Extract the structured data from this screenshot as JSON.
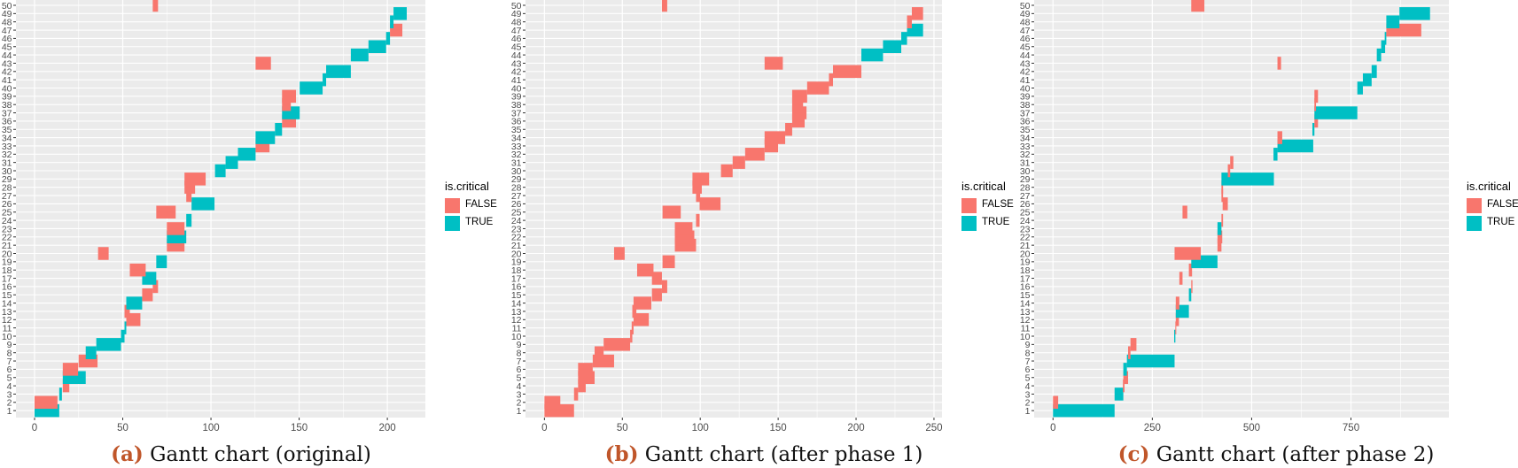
{
  "colors": {
    "false": "#F8766D",
    "true": "#00BFC4",
    "panel_bg": "#EBEBEB",
    "grid": "#FFFFFF",
    "caption_letter": "#C0562A"
  },
  "chart_data": [
    {
      "type": "gantt",
      "caption_letter": "(a)",
      "caption_text": "Gantt chart (original)",
      "xlabel": "",
      "ylabel": "",
      "xticks": [
        0,
        50,
        100,
        150,
        200
      ],
      "xminor": [
        25,
        75,
        125,
        175
      ],
      "xlim": [
        0,
        211
      ],
      "yticks": [
        1,
        2,
        3,
        4,
        5,
        6,
        7,
        8,
        9,
        10,
        11,
        12,
        13,
        14,
        15,
        16,
        17,
        18,
        19,
        20,
        21,
        22,
        23,
        24,
        25,
        26,
        27,
        28,
        29,
        30,
        31,
        32,
        33,
        34,
        35,
        36,
        37,
        38,
        39,
        40,
        41,
        42,
        43,
        44,
        45,
        46,
        47,
        48,
        49,
        50
      ],
      "legend": {
        "title": "is.critical",
        "entries": [
          "FALSE",
          "TRUE"
        ]
      },
      "tasks": [
        [
          1,
          0,
          14,
          true
        ],
        [
          2,
          0,
          13,
          false
        ],
        [
          3,
          14,
          15.5,
          true
        ],
        [
          4,
          16,
          19.7,
          false
        ],
        [
          5,
          16,
          29,
          true
        ],
        [
          6,
          16,
          24.7,
          false
        ],
        [
          7,
          25,
          35.7,
          false
        ],
        [
          8,
          29,
          35,
          true
        ],
        [
          9,
          35,
          49,
          true
        ],
        [
          10,
          49,
          51,
          true
        ],
        [
          11,
          51,
          52,
          true
        ],
        [
          12,
          52,
          60,
          false
        ],
        [
          13,
          51,
          54,
          false
        ],
        [
          14,
          52,
          61,
          true
        ],
        [
          15,
          61,
          67,
          false
        ],
        [
          16,
          67,
          70,
          false
        ],
        [
          17,
          61,
          69,
          true
        ],
        [
          18,
          54,
          63,
          false
        ],
        [
          19,
          69,
          75,
          true
        ],
        [
          20,
          36,
          42,
          false
        ],
        [
          21,
          75,
          85,
          false
        ],
        [
          22,
          75,
          86,
          true
        ],
        [
          23,
          75,
          85,
          false
        ],
        [
          24,
          86,
          89,
          true
        ],
        [
          25,
          69,
          80,
          false
        ],
        [
          26,
          89,
          102,
          true
        ],
        [
          27,
          86,
          89,
          false
        ],
        [
          28,
          85,
          91,
          false
        ],
        [
          29,
          85,
          97,
          false
        ],
        [
          30,
          102.3,
          108.3,
          true
        ],
        [
          31,
          108.3,
          115.3,
          true
        ],
        [
          32,
          115.3,
          125.3,
          true
        ],
        [
          33,
          125.3,
          133.2,
          false
        ],
        [
          34,
          125.3,
          136.3,
          true
        ],
        [
          35,
          136.3,
          140.3,
          true
        ],
        [
          36,
          140.3,
          148.2,
          false
        ],
        [
          37,
          140.3,
          150.3,
          true
        ],
        [
          38,
          140.3,
          145.3,
          false
        ],
        [
          39,
          140.3,
          148.2,
          false
        ],
        [
          40,
          150.3,
          163.3,
          true
        ],
        [
          41,
          163.3,
          165.3,
          true
        ],
        [
          42,
          165.3,
          179.3,
          true
        ],
        [
          43,
          125.3,
          134,
          false
        ],
        [
          44,
          179.3,
          189.3,
          true
        ],
        [
          45,
          189.3,
          199.3,
          true
        ],
        [
          46,
          199.3,
          201.5,
          true
        ],
        [
          47,
          201.5,
          208.5,
          false
        ],
        [
          48,
          201.5,
          203.5,
          true
        ],
        [
          49,
          203.5,
          211,
          true
        ],
        [
          50,
          67,
          70,
          false
        ]
      ]
    },
    {
      "type": "gantt",
      "caption_letter": "(b)",
      "caption_text": "Gantt chart (after phase 1)",
      "xlabel": "",
      "ylabel": "",
      "xticks": [
        0,
        50,
        100,
        150,
        200,
        250
      ],
      "xminor": [
        25,
        75,
        125,
        175,
        225
      ],
      "xlim": [
        0,
        243
      ],
      "yticks": [
        1,
        2,
        3,
        4,
        5,
        6,
        7,
        8,
        9,
        10,
        11,
        12,
        13,
        14,
        15,
        16,
        17,
        18,
        19,
        20,
        21,
        22,
        23,
        24,
        25,
        26,
        27,
        28,
        29,
        30,
        31,
        32,
        33,
        34,
        35,
        36,
        37,
        38,
        39,
        40,
        41,
        42,
        43,
        44,
        45,
        46,
        47,
        48,
        49,
        50
      ],
      "legend": {
        "title": "is.critical",
        "entries": [
          "FALSE",
          "TRUE"
        ]
      },
      "tasks": [
        [
          1,
          0,
          19,
          false
        ],
        [
          2,
          0,
          10.2,
          false
        ],
        [
          3,
          19,
          21.6,
          false
        ],
        [
          4,
          21.6,
          26.5,
          false
        ],
        [
          5,
          21.6,
          32.2,
          false
        ],
        [
          6,
          21.6,
          31,
          false
        ],
        [
          7,
          31,
          44.7,
          false
        ],
        [
          8,
          32.2,
          38,
          false
        ],
        [
          9,
          38,
          55,
          false
        ],
        [
          10,
          55,
          56.4,
          false
        ],
        [
          11,
          56,
          57.2,
          false
        ],
        [
          12,
          57.2,
          67,
          false
        ],
        [
          13,
          56.4,
          59,
          false
        ],
        [
          14,
          57.2,
          68.6,
          false
        ],
        [
          15,
          69,
          75.4,
          false
        ],
        [
          16,
          75.4,
          78.8,
          false
        ],
        [
          17,
          69,
          75.4,
          false
        ],
        [
          18,
          59.5,
          70,
          false
        ],
        [
          19,
          75.8,
          83.7,
          false
        ],
        [
          20,
          44.7,
          51.5,
          false
        ],
        [
          21,
          83.7,
          97.3,
          false
        ],
        [
          22,
          83.7,
          96.2,
          false
        ],
        [
          23,
          83.7,
          95,
          false
        ],
        [
          24,
          97.3,
          99.6,
          false
        ],
        [
          25,
          75.8,
          87.5,
          false
        ],
        [
          26,
          99.6,
          113,
          false
        ],
        [
          27,
          97.3,
          100,
          false
        ],
        [
          28,
          95,
          101,
          false
        ],
        [
          29,
          95,
          105.7,
          false
        ],
        [
          30,
          113.3,
          120.8,
          false
        ],
        [
          31,
          120.8,
          128.8,
          false
        ],
        [
          32,
          128.8,
          141.3,
          false
        ],
        [
          33,
          141.3,
          150,
          false
        ],
        [
          34,
          141.3,
          154.5,
          false
        ],
        [
          35,
          154.5,
          159,
          false
        ],
        [
          36,
          159,
          167,
          false
        ],
        [
          37,
          159,
          168.2,
          false
        ],
        [
          38,
          159,
          166,
          false
        ],
        [
          39,
          159,
          168.6,
          false
        ],
        [
          40,
          168.6,
          182.6,
          false
        ],
        [
          41,
          182.6,
          185.2,
          false
        ],
        [
          42,
          185.2,
          203.4,
          false
        ],
        [
          43,
          141.3,
          153,
          false
        ],
        [
          44,
          203.4,
          217.3,
          true
        ],
        [
          45,
          217.3,
          229,
          true
        ],
        [
          46,
          229,
          232.7,
          true
        ],
        [
          47,
          232.7,
          243,
          true
        ],
        [
          48,
          232.7,
          235.8,
          false
        ],
        [
          49,
          235.8,
          243,
          false
        ],
        [
          50,
          75.4,
          78.8,
          false
        ]
      ]
    },
    {
      "type": "gantt",
      "caption_letter": "(c)",
      "caption_text": "Gantt chart (after phase 2)",
      "xlabel": "",
      "ylabel": "",
      "xticks": [
        0,
        250,
        500,
        750
      ],
      "xminor": [
        125,
        375,
        625,
        875
      ],
      "xlim": [
        0,
        949
      ],
      "yticks": [
        1,
        2,
        3,
        4,
        5,
        6,
        7,
        8,
        9,
        10,
        11,
        12,
        13,
        14,
        15,
        16,
        17,
        18,
        19,
        20,
        21,
        22,
        23,
        24,
        25,
        26,
        27,
        28,
        29,
        30,
        31,
        32,
        33,
        34,
        35,
        36,
        37,
        38,
        39,
        40,
        41,
        42,
        43,
        44,
        45,
        46,
        47,
        48,
        49,
        50
      ],
      "legend": {
        "title": "is.critical",
        "entries": [
          "FALSE",
          "TRUE"
        ]
      },
      "tasks": [
        [
          1,
          0,
          155,
          true
        ],
        [
          2,
          0,
          13,
          false
        ],
        [
          3,
          155,
          177,
          true
        ],
        [
          4,
          176,
          180,
          false
        ],
        [
          5,
          177,
          189,
          false
        ],
        [
          6,
          177,
          186,
          true
        ],
        [
          7,
          186,
          306,
          true
        ],
        [
          8,
          189,
          195,
          false
        ],
        [
          9,
          195,
          210,
          false
        ],
        [
          10,
          305,
          308,
          true
        ],
        [
          11,
          308,
          309.5,
          false
        ],
        [
          12,
          309,
          317,
          false
        ],
        [
          13,
          309,
          342,
          true
        ],
        [
          14,
          309,
          318,
          false
        ],
        [
          15,
          342,
          348,
          true
        ],
        [
          16,
          348,
          351,
          false
        ],
        [
          17,
          318,
          326,
          false
        ],
        [
          18,
          342,
          350,
          false
        ],
        [
          19,
          348,
          414,
          true
        ],
        [
          20,
          306,
          372,
          false
        ],
        [
          21,
          414,
          424,
          false
        ],
        [
          22,
          414,
          426,
          false
        ],
        [
          23,
          414,
          424,
          true
        ],
        [
          24,
          424,
          428,
          false
        ],
        [
          25,
          326,
          338,
          false
        ],
        [
          26,
          427,
          440,
          false
        ],
        [
          27,
          424,
          428,
          false
        ],
        [
          28,
          424,
          428,
          false
        ],
        [
          29,
          424,
          556,
          true
        ],
        [
          30,
          440,
          446,
          false
        ],
        [
          31,
          446,
          454,
          false
        ],
        [
          32,
          555,
          565,
          true
        ],
        [
          33,
          565,
          655,
          true
        ],
        [
          34,
          565,
          577,
          false
        ],
        [
          35,
          653,
          658,
          true
        ],
        [
          36,
          658,
          667,
          false
        ],
        [
          37,
          658,
          766,
          true
        ],
        [
          38,
          658,
          662,
          false
        ],
        [
          39,
          658,
          667,
          false
        ],
        [
          40,
          766,
          780,
          true
        ],
        [
          41,
          780,
          802,
          true
        ],
        [
          42,
          802,
          815,
          true
        ],
        [
          43,
          565,
          574,
          false
        ],
        [
          44,
          815,
          826,
          true
        ],
        [
          45,
          826,
          836,
          true
        ],
        [
          46,
          835,
          839,
          true
        ],
        [
          47,
          839,
          927,
          false
        ],
        [
          48,
          839,
          872,
          true
        ],
        [
          49,
          872,
          949,
          true
        ],
        [
          50,
          348,
          381,
          false
        ]
      ]
    }
  ]
}
